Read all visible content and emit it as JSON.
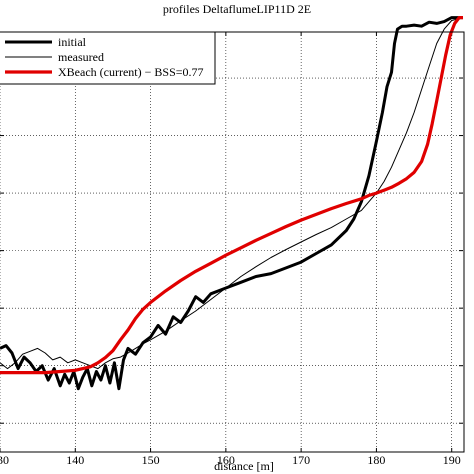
{
  "chart_data": {
    "type": "line",
    "title": "profiles DeltaflumeLIP11D 2E",
    "xlabel": "distance [m]",
    "ylabel": "",
    "xlim": [
      130,
      191.5
    ],
    "ylim": [
      -1.5,
      5.8
    ],
    "xticks": [
      130,
      140,
      150,
      160,
      170,
      180,
      190
    ],
    "xtick_labels": [
      "130",
      "140",
      "150",
      "160",
      "170",
      "180",
      "190"
    ],
    "yticks": [
      -1,
      0,
      1,
      2,
      3,
      4,
      5
    ],
    "grid": true,
    "legend_position": "top-left",
    "series": [
      {
        "name": "initial",
        "color": "#000000",
        "x": [
          130,
          130.8,
          131.6,
          132.4,
          133.2,
          134,
          134.8,
          135.6,
          136.4,
          137.2,
          138,
          138.6,
          139.2,
          139.8,
          140.4,
          141,
          141.6,
          142.2,
          142.8,
          143.4,
          144,
          144.6,
          145.2,
          145.8,
          146.4,
          147,
          148,
          149,
          150,
          151,
          152,
          153,
          154,
          155,
          156,
          157,
          158,
          160,
          162,
          164,
          166,
          168,
          170,
          172,
          174,
          176,
          177,
          178,
          179,
          180,
          180.8,
          181.4,
          182,
          182.4,
          182.8,
          183.4,
          184,
          185,
          186,
          187,
          188,
          189,
          190,
          191.5
        ],
        "y": [
          0.3,
          0.35,
          0.22,
          -0.05,
          0.15,
          0.05,
          -0.1,
          0,
          -0.25,
          -0.05,
          -0.35,
          -0.15,
          -0.3,
          -0.1,
          -0.4,
          -0.2,
          -0.05,
          -0.35,
          -0.1,
          -0.25,
          0,
          -0.3,
          0.05,
          -0.4,
          0.1,
          0.3,
          0.2,
          0.4,
          0.5,
          0.7,
          0.55,
          0.85,
          0.75,
          0.95,
          1.2,
          1.1,
          1.25,
          1.35,
          1.45,
          1.55,
          1.6,
          1.7,
          1.8,
          1.95,
          2.1,
          2.35,
          2.55,
          2.85,
          3.3,
          3.9,
          4.4,
          4.85,
          5.1,
          5.6,
          5.85,
          5.9,
          5.9,
          5.92,
          5.9,
          5.97,
          5.95,
          5.98,
          6.05,
          6.05
        ]
      },
      {
        "name": "measured",
        "color": "#000000",
        "x": [
          130,
          131,
          132,
          133,
          134,
          135,
          136,
          137,
          138,
          139,
          140,
          141,
          142,
          143,
          144,
          145,
          146,
          147,
          148,
          149,
          150,
          152,
          154,
          156,
          158,
          160,
          162,
          164,
          166,
          168,
          170,
          172,
          174,
          176,
          178,
          179,
          180,
          181,
          182,
          183,
          184,
          185,
          186,
          187,
          188,
          189,
          190,
          191.5
        ],
        "y": [
          0.05,
          -0.05,
          0.05,
          0.2,
          0.25,
          0.3,
          0.22,
          0.1,
          0.15,
          0.05,
          0.1,
          0.05,
          0,
          -0.05,
          0.05,
          0.12,
          0.15,
          0.22,
          0.3,
          0.38,
          0.45,
          0.6,
          0.78,
          0.95,
          1.15,
          1.35,
          1.55,
          1.72,
          1.88,
          2.02,
          2.15,
          2.28,
          2.4,
          2.55,
          2.7,
          2.85,
          3.0,
          3.2,
          3.45,
          3.75,
          4.05,
          4.4,
          4.8,
          5.2,
          5.6,
          5.85,
          6.0,
          6.05
        ]
      },
      {
        "name": "XBeach (current) − BSS=0.77",
        "color": "#e00000",
        "x": [
          130,
          132,
          134,
          136,
          138,
          140,
          142,
          143,
          144,
          145,
          146,
          147,
          148,
          149,
          150,
          152,
          154,
          156,
          158,
          160,
          162,
          164,
          166,
          168,
          170,
          172,
          174,
          176,
          178,
          179,
          180,
          181,
          182,
          183,
          184,
          185,
          186,
          186.8,
          187.4,
          188,
          188.6,
          189.2,
          189.8,
          190.4,
          191,
          191.5
        ],
        "y": [
          -0.12,
          -0.12,
          -0.12,
          -0.12,
          -0.1,
          -0.08,
          -0.02,
          0.05,
          0.14,
          0.26,
          0.45,
          0.62,
          0.82,
          0.98,
          1.1,
          1.3,
          1.48,
          1.64,
          1.78,
          1.92,
          2.05,
          2.18,
          2.3,
          2.42,
          2.53,
          2.63,
          2.73,
          2.82,
          2.9,
          2.96,
          3.0,
          3.05,
          3.1,
          3.17,
          3.25,
          3.36,
          3.55,
          3.85,
          4.2,
          4.6,
          5.0,
          5.4,
          5.75,
          5.95,
          6.05,
          6.05
        ]
      }
    ]
  }
}
